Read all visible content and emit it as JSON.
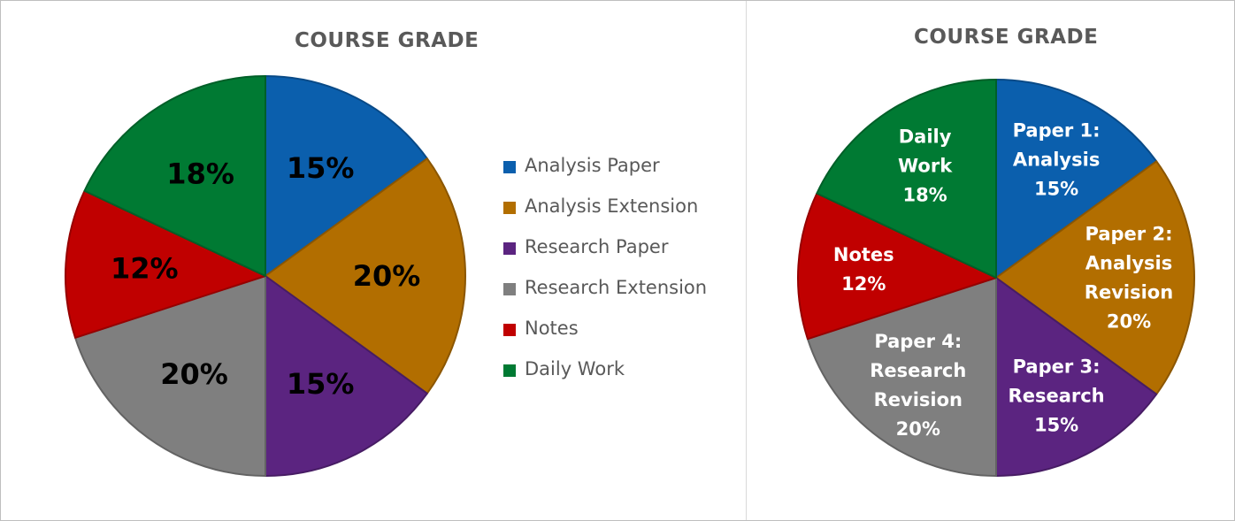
{
  "chart_data": [
    {
      "type": "pie",
      "title": "COURSE GRADE",
      "slices": [
        {
          "label": "Analysis Paper",
          "value": 15,
          "data_label": "15%",
          "color": "#0b5fad"
        },
        {
          "label": "Analysis Extension",
          "value": 20,
          "data_label": "20%",
          "color": "#b26e00"
        },
        {
          "label": "Research Paper",
          "value": 15,
          "data_label": "15%",
          "color": "#5b2480"
        },
        {
          "label": "Research Extension",
          "value": 20,
          "data_label": "20%",
          "color": "#7f7f7f"
        },
        {
          "label": "Notes",
          "value": 12,
          "data_label": "12%",
          "color": "#c00000"
        },
        {
          "label": "Daily Work",
          "value": 18,
          "data_label": "18%",
          "color": "#007a33"
        }
      ],
      "legend": "right",
      "label_color": "#000000"
    },
    {
      "type": "pie",
      "title": "COURSE GRADE",
      "slices": [
        {
          "label": [
            "Paper 1:",
            "Analysis"
          ],
          "value": 15,
          "data_label": "15%",
          "color": "#0b5fad"
        },
        {
          "label": [
            "Paper 2:",
            "Analysis",
            "Revision"
          ],
          "value": 20,
          "data_label": "20%",
          "color": "#b26e00"
        },
        {
          "label": [
            "Paper 3:",
            "Research"
          ],
          "value": 15,
          "data_label": "15%",
          "color": "#5b2480"
        },
        {
          "label": [
            "Paper 4:",
            "Research",
            "Revision"
          ],
          "value": 20,
          "data_label": "20%",
          "color": "#7f7f7f"
        },
        {
          "label": [
            "Notes"
          ],
          "value": 12,
          "data_label": "12%",
          "color": "#c00000"
        },
        {
          "label": [
            "Daily",
            "Work"
          ],
          "value": 18,
          "data_label": "18%",
          "color": "#007a33"
        }
      ],
      "legend": "none",
      "label_color": "#ffffff"
    }
  ]
}
